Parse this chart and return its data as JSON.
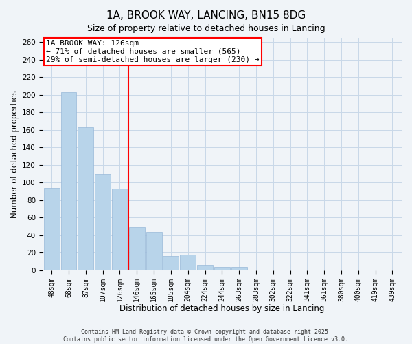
{
  "title": "1A, BROOK WAY, LANCING, BN15 8DG",
  "subtitle": "Size of property relative to detached houses in Lancing",
  "xlabel": "Distribution of detached houses by size in Lancing",
  "ylabel": "Number of detached properties",
  "categories": [
    "48sqm",
    "68sqm",
    "87sqm",
    "107sqm",
    "126sqm",
    "146sqm",
    "165sqm",
    "185sqm",
    "204sqm",
    "224sqm",
    "244sqm",
    "263sqm",
    "283sqm",
    "302sqm",
    "322sqm",
    "341sqm",
    "361sqm",
    "380sqm",
    "400sqm",
    "419sqm",
    "439sqm"
  ],
  "values": [
    94,
    203,
    163,
    110,
    93,
    49,
    44,
    16,
    18,
    6,
    4,
    4,
    0,
    0,
    0,
    0,
    0,
    0,
    0,
    0,
    1
  ],
  "bar_color": "#b8d4ea",
  "bar_edge_color": "#98b8d8",
  "vline_color": "red",
  "vline_x_index": 4,
  "annotation_title": "1A BROOK WAY: 126sqm",
  "annotation_line1": "← 71% of detached houses are smaller (565)",
  "annotation_line2": "29% of semi-detached houses are larger (230) →",
  "annotation_box_facecolor": "white",
  "annotation_box_edgecolor": "red",
  "ylim": [
    0,
    265
  ],
  "yticks": [
    0,
    20,
    40,
    60,
    80,
    100,
    120,
    140,
    160,
    180,
    200,
    220,
    240,
    260
  ],
  "footer_line1": "Contains HM Land Registry data © Crown copyright and database right 2025.",
  "footer_line2": "Contains public sector information licensed under the Open Government Licence v3.0.",
  "background_color": "#f0f4f8",
  "grid_color": "#c8d8e8",
  "title_fontsize": 11,
  "subtitle_fontsize": 9,
  "ann_fontsize": 8,
  "tick_fontsize": 7,
  "axis_label_fontsize": 8.5
}
